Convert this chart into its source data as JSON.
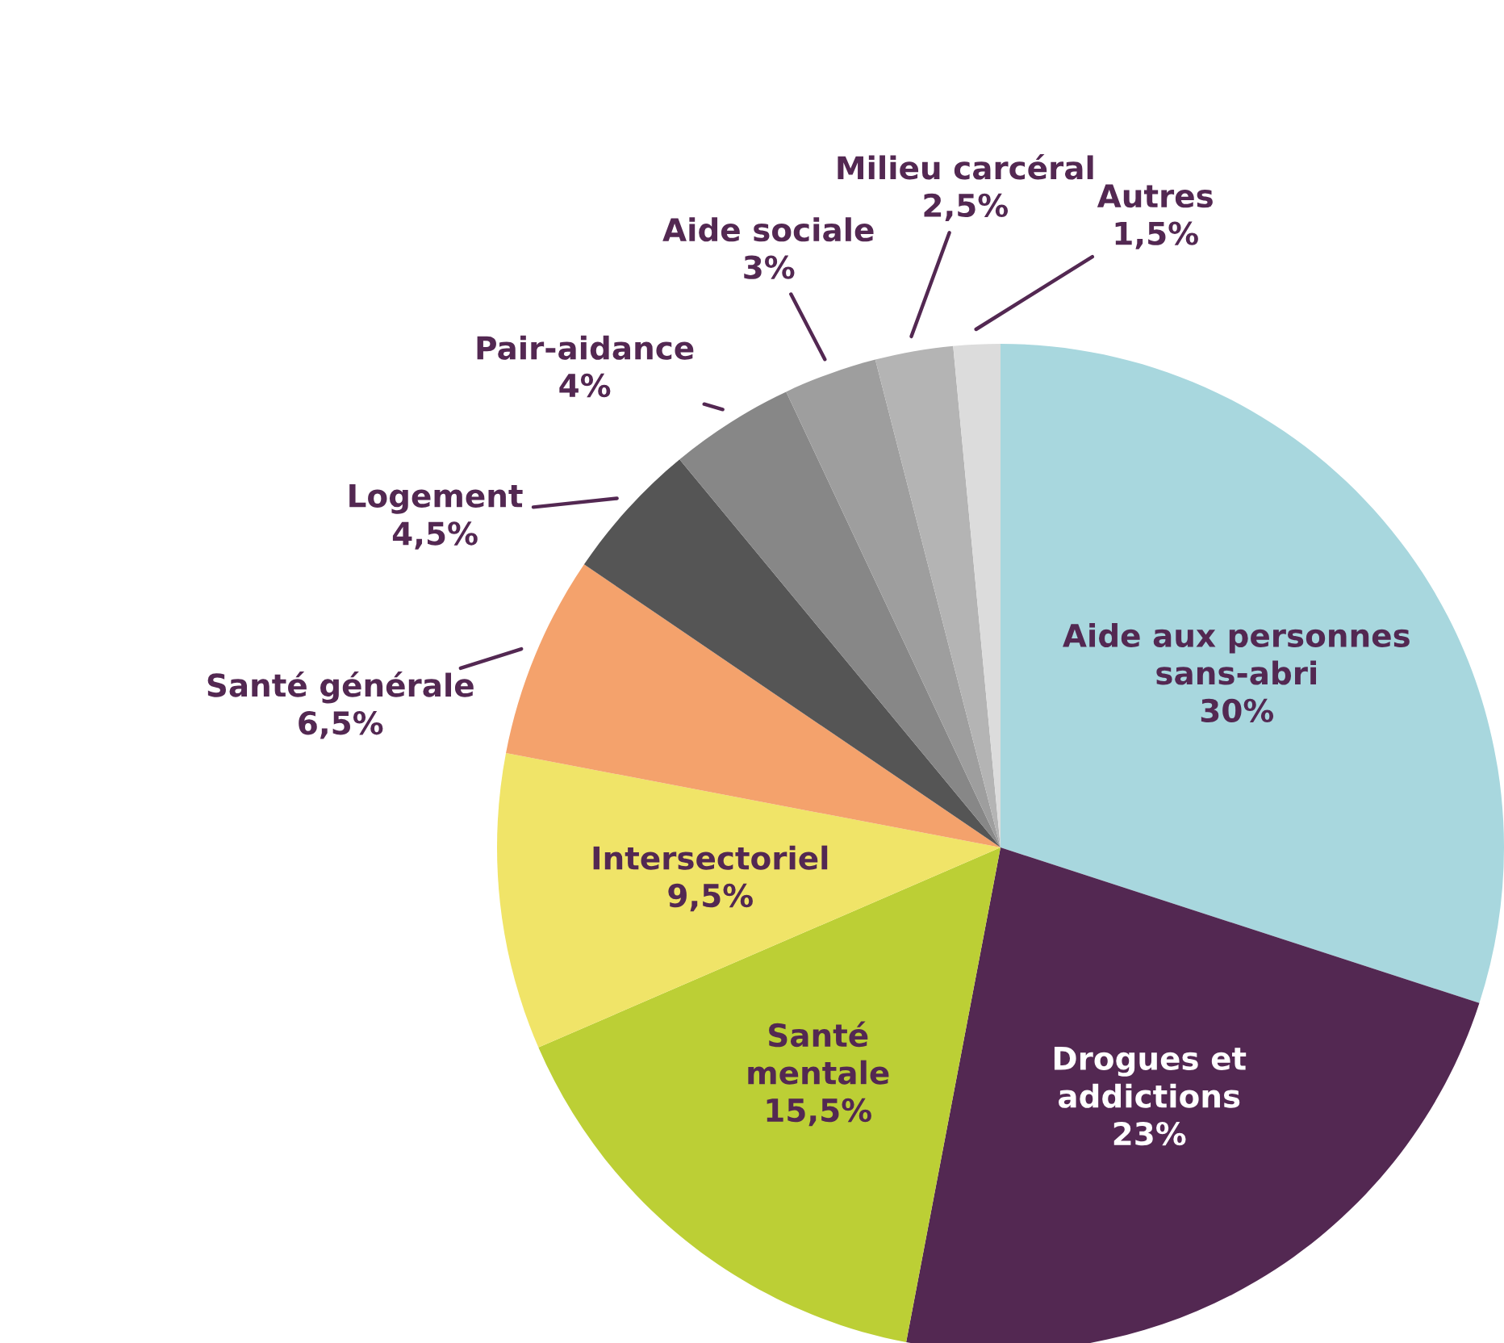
{
  "chart_data": {
    "type": "pie",
    "categories": [
      "Aide aux personnes\nsans-abri",
      "Drogues et\naddictions",
      "Santé\nmentale",
      "Intersectoriel",
      "Santé générale",
      "Logement",
      "Pair-aidance",
      "Aide sociale",
      "Milieu carcéral",
      "Autres"
    ],
    "values": [
      30,
      23,
      15.5,
      9.5,
      6.5,
      4.5,
      4,
      3,
      2.5,
      1.5
    ],
    "value_labels": [
      "30%",
      "23%",
      "15,5%",
      "9,5%",
      "6,5%",
      "4,5%",
      "4%",
      "3%",
      "2,5%",
      "1,5%"
    ],
    "colors": [
      "#a8d7de",
      "#532852",
      "#bccf35",
      "#f0e468",
      "#f4a26c",
      "#555555",
      "#878787",
      "#9e9e9e",
      "#b4b4b4",
      "#dcdcdc"
    ]
  }
}
